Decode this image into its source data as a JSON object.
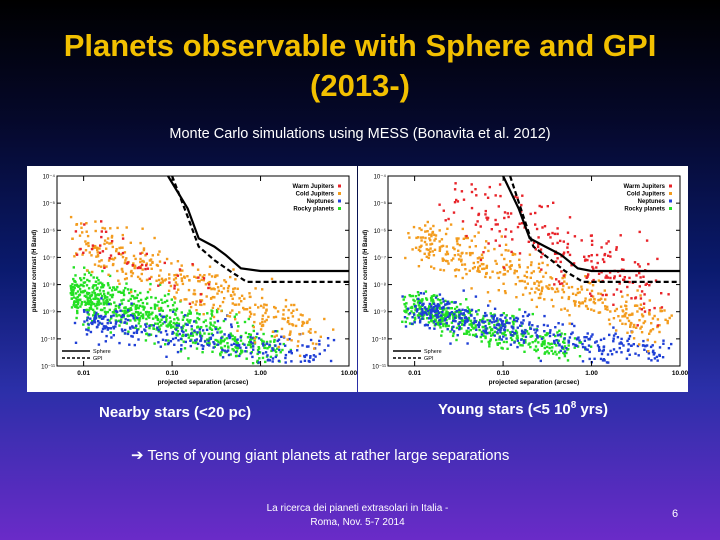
{
  "title_line1": "Planets observable with Sphere and GPI",
  "title_line2": "(2013-)",
  "subtitle": "Monte Carlo simulations using MESS (Bonavita et al. 2012)",
  "chart_data": [
    {
      "type": "scatter",
      "name": "nearby",
      "caption": "Nearby stars (<20 pc)",
      "xlabel": "projected separation (arcsec)",
      "ylabel": "planet/star contrast (H Band)",
      "xscale": "log",
      "yscale": "log",
      "xlim": [
        0.005,
        10
      ],
      "ylim": [
        1e-11,
        0.0001
      ],
      "xticks": [
        "0.01",
        "0.10",
        "1.00",
        "10.00"
      ],
      "yticks": [
        "10⁻⁴",
        "10⁻⁵",
        "10⁻⁶",
        "10⁻⁷",
        "10⁻⁸",
        "10⁻⁹",
        "10⁻¹⁰",
        "10⁻¹¹"
      ],
      "legend": [
        {
          "label": "Warm Jupiters",
          "color": "#e8242a"
        },
        {
          "label": "Cold Jupiters",
          "color": "#f39c1e"
        },
        {
          "label": "Neptunes",
          "color": "#1f3fd6"
        },
        {
          "label": "Rocky planets",
          "color": "#23e023"
        }
      ],
      "curve_legend": [
        {
          "label": "Sphere",
          "style": "solid"
        },
        {
          "label": "GPI",
          "style": "dashed"
        }
      ],
      "sphere_curve": {
        "x": [
          0.09,
          0.15,
          0.2,
          0.3,
          0.4,
          0.6,
          1.0,
          2.0,
          10.0
        ],
        "y": [
          -4.0,
          -5.2,
          -6.3,
          -6.6,
          -6.9,
          -7.4,
          -7.5,
          -7.5,
          -7.5
        ]
      },
      "gpi_curve": {
        "x": [
          0.1,
          0.15,
          0.2,
          0.3,
          0.45,
          0.7,
          1.0,
          2.0,
          10.0
        ],
        "y": [
          -4.0,
          -5.5,
          -6.6,
          -7.1,
          -7.5,
          -7.9,
          -7.9,
          -7.9,
          -7.9
        ]
      },
      "clouds": [
        {
          "key": "Rocky planets",
          "color": "#23e023",
          "n": 750,
          "x0": -2.2,
          "x1": 0.15,
          "y0": -8.2,
          "y1": -10.5,
          "noise": 0.75,
          "xpow": 1.6,
          "seed": 11
        },
        {
          "key": "Neptunes",
          "color": "#1f3fd6",
          "n": 300,
          "x0": -1.9,
          "x1": 0.95,
          "y0": -9.3,
          "y1": -10.9,
          "noise": 0.6,
          "xpow": 1.4,
          "seed": 23
        },
        {
          "key": "Cold Jupiters",
          "color": "#f39c1e",
          "n": 380,
          "x0": -2.1,
          "x1": 0.65,
          "y0": -6.3,
          "y1": -9.9,
          "noise": 0.8,
          "xpow": 1.2,
          "seed": 37
        },
        {
          "key": "Warm Jupiters",
          "color": "#e8242a",
          "n": 50,
          "x0": -2.1,
          "x1": -0.5,
          "y0": -6.2,
          "y1": -8.4,
          "noise": 0.7,
          "xpow": 1.0,
          "seed": 41
        }
      ]
    },
    {
      "type": "scatter",
      "name": "young",
      "caption": "Young stars (<5 10",
      "caption_sup": "8",
      "caption_end": " yrs)",
      "xlabel": "projected separation (arcsec)",
      "ylabel": "planet/star contrast (H Band)",
      "xscale": "log",
      "yscale": "log",
      "xlim": [
        0.005,
        10
      ],
      "ylim": [
        1e-11,
        0.0001
      ],
      "xticks": [
        "0.01",
        "0.10",
        "1.00",
        "10.00"
      ],
      "yticks": [
        "10⁻⁴",
        "10⁻⁵",
        "10⁻⁶",
        "10⁻⁷",
        "10⁻⁸",
        "10⁻⁹",
        "10⁻¹⁰",
        "10⁻¹¹"
      ],
      "legend": [
        {
          "label": "Warm Jupiters",
          "color": "#e8242a"
        },
        {
          "label": "Cold Jupiters",
          "color": "#f39c1e"
        },
        {
          "label": "Neptunes",
          "color": "#1f3fd6"
        },
        {
          "label": "Rocky planets",
          "color": "#23e023"
        }
      ],
      "curve_legend": [
        {
          "label": "Sphere",
          "style": "solid"
        },
        {
          "label": "GPI",
          "style": "dashed"
        }
      ],
      "sphere_curve": {
        "x": [
          0.1,
          0.15,
          0.2,
          0.3,
          0.45,
          0.7,
          1.0,
          2.0,
          10.0
        ],
        "y": [
          -4.0,
          -5.2,
          -6.3,
          -6.6,
          -6.9,
          -7.4,
          -7.5,
          -7.5,
          -7.5
        ]
      },
      "gpi_curve": {
        "x": [
          0.12,
          0.17,
          0.22,
          0.35,
          0.5,
          0.8,
          1.0,
          2.0,
          10.0
        ],
        "y": [
          -4.0,
          -5.5,
          -6.6,
          -7.1,
          -7.5,
          -7.9,
          -7.9,
          -7.9,
          -7.9
        ]
      },
      "clouds": [
        {
          "key": "Rocky planets",
          "color": "#23e023",
          "n": 500,
          "x0": -2.0,
          "x1": -0.2,
          "y0": -8.8,
          "y1": -10.5,
          "noise": 0.55,
          "xpow": 1.5,
          "seed": 53
        },
        {
          "key": "Neptunes",
          "color": "#1f3fd6",
          "n": 420,
          "x0": -2.0,
          "x1": 0.9,
          "y0": -8.9,
          "y1": -10.8,
          "noise": 0.55,
          "xpow": 1.3,
          "seed": 67
        },
        {
          "key": "Cold Jupiters",
          "color": "#f39c1e",
          "n": 420,
          "x0": -2.0,
          "x1": 0.85,
          "y0": -6.3,
          "y1": -9.6,
          "noise": 0.8,
          "xpow": 1.1,
          "seed": 71
        },
        {
          "key": "Warm Jupiters",
          "color": "#e8242a",
          "n": 230,
          "x0": -1.7,
          "x1": 0.7,
          "y0": -4.6,
          "y1": -8.3,
          "noise": 1.2,
          "xpow": 0.8,
          "seed": 83
        }
      ]
    }
  ],
  "conclusion_arrow": "➔",
  "conclusion": " Tens of young giant planets at rather large separations",
  "footer_line1": "La ricerca dei pianeti extrasolari in Italia -",
  "footer_line2": "Roma, Nov. 5-7 2014",
  "page_number": "6"
}
